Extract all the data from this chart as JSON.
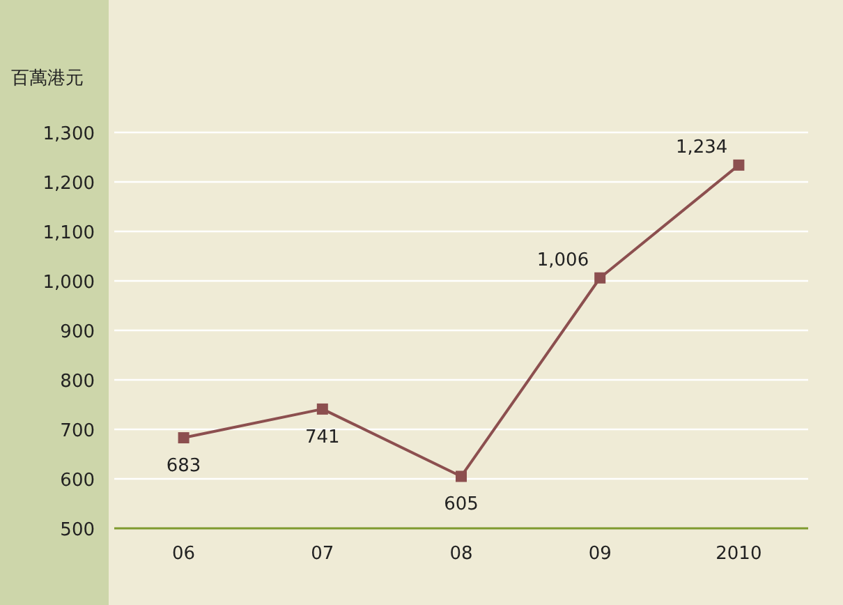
{
  "chart_data": {
    "type": "line",
    "ylabel": "百萬港元",
    "categories": [
      "06",
      "07",
      "08",
      "09",
      "2010"
    ],
    "values": [
      683,
      741,
      605,
      1006,
      1234
    ],
    "value_labels": [
      "683",
      "741",
      "605",
      "1,006",
      "1,234"
    ],
    "color": "#8c4f4f",
    "marker": "square",
    "grid": "y",
    "ylim": [
      500,
      1300
    ],
    "yticks": [
      500,
      600,
      700,
      800,
      900,
      {
        "value": 1000,
        "label": "1,000"
      },
      {
        "value": 1100,
        "label": "1,100"
      },
      {
        "value": 1200,
        "label": "1,200"
      },
      {
        "value": 1300,
        "label": "1,300"
      }
    ]
  }
}
